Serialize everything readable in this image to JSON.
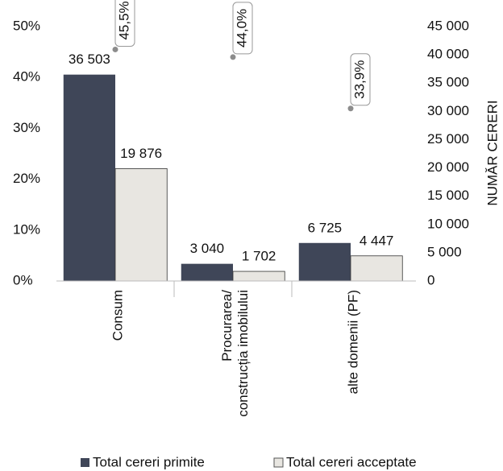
{
  "chart_data": {
    "type": "bar",
    "categories": [
      "Consum",
      "Procurarea/\nconstrucția imobilului",
      "alte domenii (PF)"
    ],
    "series": [
      {
        "name": "Total cereri primite",
        "color": "#3f4658",
        "axis": "y2",
        "values": [
          36503,
          3040,
          6725
        ],
        "value_labels": [
          "36 503",
          "3 040",
          "6 725"
        ]
      },
      {
        "name": "Total cereri acceptate",
        "color": "#e8e6e1",
        "axis": "y2",
        "values": [
          19876,
          1702,
          4447
        ],
        "value_labels": [
          "19 876",
          "1 702",
          "4 447"
        ]
      },
      {
        "type": "scatter",
        "color": "#8c8c8c",
        "axis": "y",
        "values": [
          45.5,
          44.0,
          33.9
        ],
        "value_labels": [
          "45,5%",
          "44,0%",
          "33,9%"
        ]
      }
    ],
    "ylim": [
      0,
      50
    ],
    "yticks": [
      {
        "value": 0,
        "label": "0%"
      },
      {
        "value": 10,
        "label": "10%"
      },
      {
        "value": 20,
        "label": "20%"
      },
      {
        "value": 30,
        "label": "30%"
      },
      {
        "value": 40,
        "label": "40%"
      },
      {
        "value": 50,
        "label": "50%"
      }
    ],
    "y2lim": [
      0,
      45000
    ],
    "y2ticks": [
      0,
      {
        "value": 5000,
        "label": "5 000"
      },
      {
        "value": 10000,
        "label": "10 000"
      },
      {
        "value": 15000,
        "label": "15 000"
      },
      {
        "value": 20000,
        "label": "20 000"
      },
      {
        "value": 25000,
        "label": "25 000"
      },
      {
        "value": 30000,
        "label": "30 000"
      },
      {
        "value": 35000,
        "label": "35 000"
      },
      {
        "value": 40000,
        "label": "40 000"
      },
      {
        "value": 45000,
        "label": "45 000"
      }
    ],
    "y2label": "NUMĂR CERERI",
    "legend": "bottom"
  }
}
